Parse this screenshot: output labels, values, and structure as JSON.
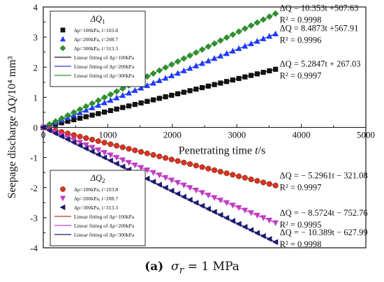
{
  "caption": {
    "panel": "(a)",
    "text": "σr = 1 MPa",
    "symbol": "σ",
    "subscript": "r",
    "value": "= 1 MPa"
  },
  "chart_data": {
    "type": "scatter",
    "xlabel": "Penetrating time t/s",
    "ylabel": "Seepage discharge ΔQ/10⁴ mm³",
    "xlim": [
      0,
      5000
    ],
    "ylim": [
      -4,
      4
    ],
    "xticks": [
      0,
      1000,
      2000,
      3000,
      4000,
      5000
    ],
    "yticks": [
      -4,
      -3,
      -2,
      -1,
      0,
      1,
      2,
      3,
      4
    ],
    "grid": false,
    "legends": [
      {
        "placement": "top-left",
        "title": "ΔQ1",
        "entries": [
          "Δp=100kPa, i=103.8",
          "Δp=200kPa, i=208.7",
          "Δp=300kPa, i=313.3",
          "Linear fitting of Δp=100kPa",
          "Linear fitting of Δp=200kPa",
          "Linear fitting of Δp=300kPa"
        ]
      },
      {
        "placement": "bottom-left",
        "title": "ΔQ2",
        "entries": [
          "Δp=100kPa, i=103.8",
          "Δp=200kPa, i=208.7",
          "Δp=300kPa, i=313.3",
          "Linear fitting of Δp=100kPa",
          "Linear fitting of Δp=200kPa",
          "Linear fitting of Δp=300kPa"
        ]
      }
    ],
    "series": [
      {
        "group": "ΔQ1",
        "marker": "square",
        "color": "#111111",
        "line_color": "#111111",
        "x": [
          0,
          3600
        ],
        "y": [
          0,
          1.93
        ],
        "equation": "ΔQ = 5.2847t + 267.03",
        "r2": "R² = 0.9997"
      },
      {
        "group": "ΔQ1",
        "marker": "triangle-up",
        "color": "#1f3bff",
        "line_color": "#2b3bd1",
        "x": [
          0,
          3600
        ],
        "y": [
          0,
          3.11
        ],
        "equation": "ΔQ = 8.4873t +567.91",
        "r2": "R² = 0.9996"
      },
      {
        "group": "ΔQ1",
        "marker": "diamond",
        "color": "#2f8f2f",
        "line_color": "#2f8f2f",
        "x": [
          0,
          3600
        ],
        "y": [
          0,
          3.78
        ],
        "equation": "ΔQ = 10.353t +507.63",
        "r2": "R² = 0.9998"
      },
      {
        "group": "ΔQ2",
        "marker": "circle",
        "color": "#9a3a2a",
        "fill": "#e03020",
        "line_color": "#c0392b",
        "x": [
          0,
          3600
        ],
        "y": [
          0,
          -1.93
        ],
        "equation": "ΔQ = − 5.2961t − 321.08",
        "r2": "R² = 0.9997"
      },
      {
        "group": "ΔQ2",
        "marker": "triangle-down",
        "color": "#c13cc4",
        "line_color": "#c13cc4",
        "x": [
          0,
          3600
        ],
        "y": [
          0,
          -3.17
        ],
        "equation": "ΔQ = − 8.5724t − 752.76",
        "r2": "R² = 0.9995"
      },
      {
        "group": "ΔQ2",
        "marker": "triangle-left",
        "color": "#1a1a6e",
        "line_color": "#1a1a6e",
        "x": [
          0,
          3600
        ],
        "y": [
          0,
          -3.81
        ],
        "equation": "ΔQ = − 10.389t − 627.99",
        "r2": "R² = 0.9998"
      }
    ]
  }
}
